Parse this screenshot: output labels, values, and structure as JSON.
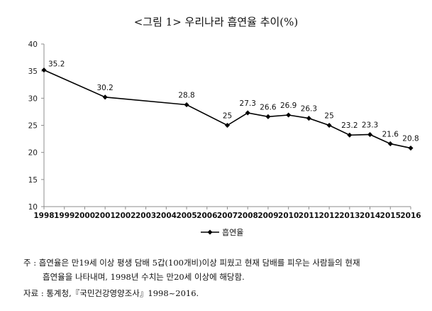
{
  "chart_data": {
    "type": "line",
    "title": "<그림 1> 우리나라 흡연율 추이(%)",
    "xlabel": "",
    "ylabel": "",
    "x": [
      "1998",
      "1999",
      "2000",
      "2001",
      "2002",
      "2003",
      "2004",
      "2005",
      "2006",
      "2007",
      "2008",
      "2009",
      "2010",
      "2011",
      "2012",
      "2013",
      "2014",
      "2015",
      "2016"
    ],
    "yticks": [
      10,
      15,
      20,
      25,
      30,
      35,
      40
    ],
    "ylim": [
      10,
      40
    ],
    "grid": false,
    "legend_position": "bottom",
    "series": [
      {
        "name": "흡연율",
        "color": "#000000",
        "points": [
          {
            "x": "1998",
            "y": 35.2,
            "label": "35.2"
          },
          {
            "x": "2001",
            "y": 30.2,
            "label": "30.2"
          },
          {
            "x": "2005",
            "y": 28.8,
            "label": "28.8"
          },
          {
            "x": "2007",
            "y": 25,
            "label": "25"
          },
          {
            "x": "2008",
            "y": 27.3,
            "label": "27.3"
          },
          {
            "x": "2009",
            "y": 26.6,
            "label": "26.6"
          },
          {
            "x": "2010",
            "y": 26.9,
            "label": "26.9"
          },
          {
            "x": "2011",
            "y": 26.3,
            "label": "26.3"
          },
          {
            "x": "2012",
            "y": 25,
            "label": "25"
          },
          {
            "x": "2013",
            "y": 23.2,
            "label": "23.2"
          },
          {
            "x": "2014",
            "y": 23.3,
            "label": "23.3"
          },
          {
            "x": "2015",
            "y": 21.6,
            "label": "21.6"
          },
          {
            "x": "2016",
            "y": 20.8,
            "label": "20.8"
          }
        ]
      }
    ]
  },
  "notes": {
    "line1": "주 : 흡연율은 만19세 이상 평생 담배 5갑(100개비)이상 피웠고 현재 담배를 피우는 사람들의 현재",
    "line2": "흡연율을 나타내며, 1998년 수치는 만20세 이상에 해당함.",
    "source": "자료 : 통계청,『국민건강영양조사』1998~2016."
  }
}
